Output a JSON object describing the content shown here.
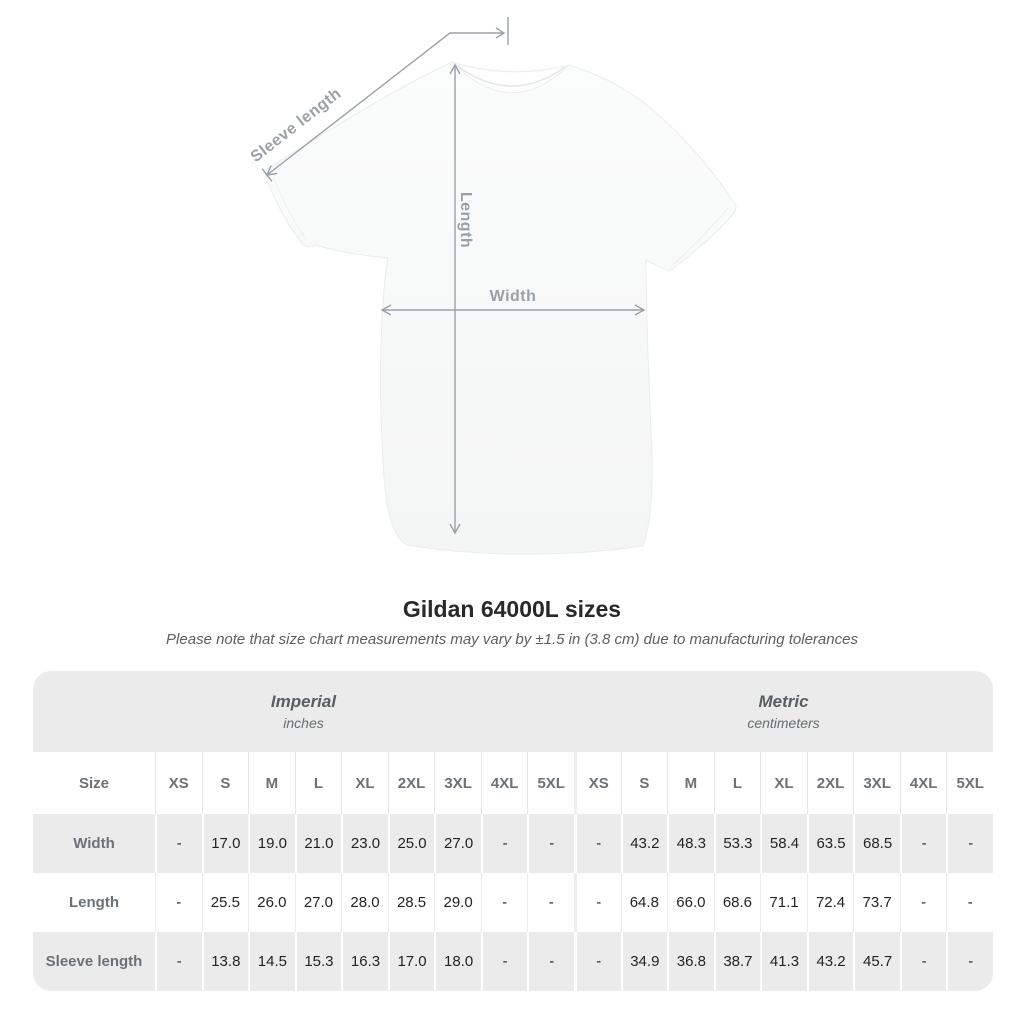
{
  "diagram": {
    "labels": {
      "sleeve_length": "Sleeve length",
      "length": "Length",
      "width": "Width"
    },
    "line_color": "#99a1a7",
    "shirt_color": "#f8f9f9"
  },
  "chart_data": {
    "type": "table",
    "title": "Gildan 64000L sizes",
    "note": "Please note that size chart measurements may vary by ±1.5 in (3.8 cm) due to manufacturing tolerances",
    "unit_groups": [
      {
        "label": "Imperial",
        "sublabel": "inches"
      },
      {
        "label": "Metric",
        "sublabel": "centimeters"
      }
    ],
    "size_col_header": "Size",
    "sizes": [
      "XS",
      "S",
      "M",
      "L",
      "XL",
      "2XL",
      "3XL",
      "4XL",
      "5XL"
    ],
    "rows": [
      {
        "label": "Width",
        "imperial": [
          "-",
          "17.0",
          "19.0",
          "21.0",
          "23.0",
          "25.0",
          "27.0",
          "-",
          "-"
        ],
        "metric": [
          "-",
          "43.2",
          "48.3",
          "53.3",
          "58.4",
          "63.5",
          "68.5",
          "-",
          "-"
        ]
      },
      {
        "label": "Length",
        "imperial": [
          "-",
          "25.5",
          "26.0",
          "27.0",
          "28.0",
          "28.5",
          "29.0",
          "-",
          "-"
        ],
        "metric": [
          "-",
          "64.8",
          "66.0",
          "68.6",
          "71.1",
          "72.4",
          "73.7",
          "-",
          "-"
        ]
      },
      {
        "label": "Sleeve length",
        "imperial": [
          "-",
          "13.8",
          "14.5",
          "15.3",
          "16.3",
          "17.0",
          "18.0",
          "-",
          "-"
        ],
        "metric": [
          "-",
          "34.9",
          "36.8",
          "38.7",
          "41.3",
          "43.2",
          "45.7",
          "-",
          "-"
        ]
      }
    ],
    "colors": {
      "band_bg": "#ebebeb",
      "alt_row_bg": "#ebebeb",
      "label_text": "#6b7176",
      "value_text": "#222426"
    }
  }
}
